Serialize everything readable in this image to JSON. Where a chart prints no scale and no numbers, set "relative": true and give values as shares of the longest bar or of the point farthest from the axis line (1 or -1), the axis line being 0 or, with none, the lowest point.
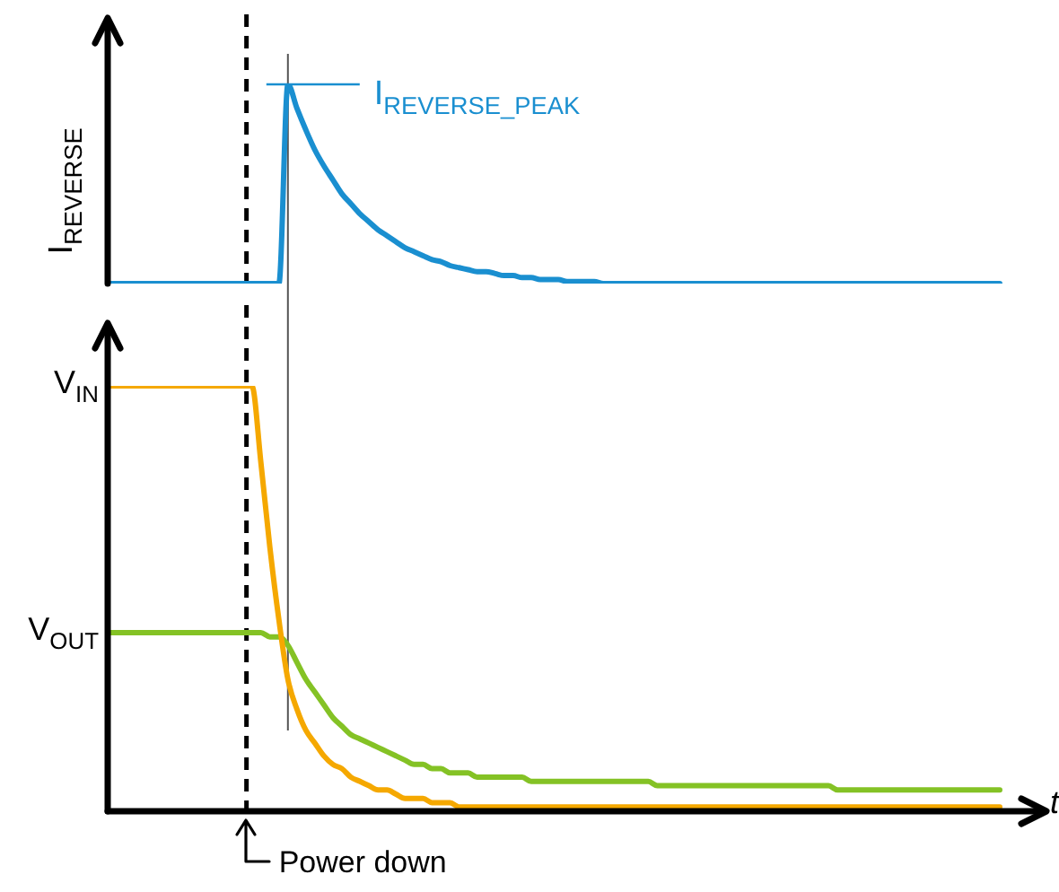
{
  "chart_data": [
    {
      "type": "line",
      "relative": true,
      "ylabel": "I$_{REVERSE}$",
      "categories": [
        null,
        null,
        null,
        null,
        null,
        null,
        null,
        null,
        null,
        null,
        null,
        null,
        null,
        null,
        null,
        null,
        null,
        null,
        null,
        null,
        null,
        null,
        null,
        null,
        null,
        null,
        null,
        null,
        null,
        null,
        null,
        null,
        null,
        null,
        null,
        null,
        null,
        null,
        null,
        null,
        null,
        null,
        null,
        null,
        null,
        null,
        null,
        null,
        null,
        null,
        null,
        null,
        null,
        null,
        null,
        null,
        null,
        null,
        null,
        null,
        null,
        null,
        null,
        null,
        null,
        null,
        null,
        null,
        null,
        null,
        null,
        null,
        null,
        null,
        null,
        null,
        null,
        null,
        null,
        null,
        null,
        null,
        null,
        null,
        null,
        null,
        null,
        null,
        null,
        null,
        null,
        null,
        null,
        null,
        null,
        null,
        null,
        null,
        null,
        null
      ],
      "series": [
        {
          "color": "#1a8fd0",
          "values": [
            0,
            0,
            0,
            0,
            0,
            0,
            0,
            0,
            0,
            0,
            0,
            0,
            0,
            0,
            0,
            0,
            0,
            0,
            0,
            0,
            1,
            0.88,
            0.77,
            0.67,
            0.59,
            0.52,
            0.45,
            0.4,
            0.35,
            0.31,
            0.27,
            0.24,
            0.21,
            0.18,
            0.16,
            0.14,
            0.12,
            0.11,
            0.09,
            0.08,
            0.07,
            0.06,
            0.06,
            0.05,
            0.04,
            0.04,
            0.03,
            0.03,
            0.02,
            0.02,
            0.02,
            0.01,
            0.01,
            0.01,
            0.01,
            0,
            0,
            0,
            0,
            0,
            0,
            0,
            0,
            0,
            0,
            0,
            0,
            0,
            0,
            0,
            0,
            0,
            0,
            0,
            0,
            0,
            0,
            0,
            0,
            0,
            0,
            0,
            0,
            0,
            0,
            0,
            0,
            0,
            0,
            0,
            0,
            0,
            0,
            0,
            0,
            0,
            0,
            0,
            0,
            0
          ]
        }
      ],
      "annotations": [
        "I$_{REVERSE_PEAK}$"
      ]
    },
    {
      "type": "line",
      "relative": true,
      "xlabel": "t",
      "categories": [
        null,
        null,
        null,
        null,
        null,
        null,
        null,
        null,
        null,
        null,
        null,
        null,
        null,
        null,
        null,
        null,
        null,
        null,
        null,
        null,
        null,
        null,
        null,
        null,
        null,
        null,
        null,
        null,
        null,
        null,
        null,
        null,
        null,
        null,
        null,
        null,
        null,
        null,
        null,
        null,
        null,
        null,
        null,
        null,
        null,
        null,
        null,
        null,
        null,
        null,
        null,
        null,
        null,
        null,
        null,
        null,
        null,
        null,
        null,
        null,
        null,
        null,
        null,
        null,
        null,
        null,
        null,
        null,
        null,
        null,
        null,
        null,
        null,
        null,
        null,
        null,
        null,
        null,
        null,
        null,
        null,
        null,
        null,
        null,
        null,
        null,
        null,
        null,
        null,
        null,
        null,
        null,
        null,
        null,
        null,
        null,
        null,
        null,
        null,
        null
      ],
      "series": [
        {
          "name": "V$_{IN}$",
          "color": "#f5a800",
          "values": [
            1,
            1,
            1,
            1,
            1,
            1,
            1,
            1,
            1,
            1,
            1,
            1,
            1,
            1,
            1,
            1,
            1,
            0.82,
            0.62,
            0.45,
            0.31,
            0.24,
            0.19,
            0.16,
            0.13,
            0.11,
            0.1,
            0.08,
            0.07,
            0.06,
            0.05,
            0.05,
            0.04,
            0.03,
            0.03,
            0.03,
            0.02,
            0.02,
            0.02,
            0.01,
            0.01,
            0.01,
            0.01,
            0.01,
            0.01,
            0.01,
            0.01,
            0.01,
            0.01,
            0.01,
            0.01,
            0.01,
            0.01,
            0.01,
            0.01,
            0.01,
            0.01,
            0.01,
            0.01,
            0.01,
            0.01,
            0.01,
            0.01,
            0.01,
            0.01,
            0.01,
            0.01,
            0.01,
            0.01,
            0.01,
            0.01,
            0.01,
            0.01,
            0.01,
            0.01,
            0.01,
            0.01,
            0.01,
            0.01,
            0.01,
            0.01,
            0.01,
            0.01,
            0.01,
            0.01,
            0.01,
            0.01,
            0.01,
            0.01,
            0.01,
            0.01,
            0.01,
            0.01,
            0.01,
            0.01,
            0.01,
            0.01,
            0.01,
            0.01,
            0.01
          ]
        },
        {
          "name": "V$_{OUT}$",
          "color": "#84c225",
          "values": [
            0.42,
            0.42,
            0.42,
            0.42,
            0.42,
            0.42,
            0.42,
            0.42,
            0.42,
            0.42,
            0.42,
            0.42,
            0.42,
            0.42,
            0.42,
            0.42,
            0.42,
            0.42,
            0.41,
            0.41,
            0.39,
            0.35,
            0.31,
            0.28,
            0.25,
            0.22,
            0.2,
            0.18,
            0.17,
            0.16,
            0.15,
            0.14,
            0.13,
            0.12,
            0.11,
            0.11,
            0.1,
            0.1,
            0.09,
            0.09,
            0.09,
            0.08,
            0.08,
            0.08,
            0.08,
            0.08,
            0.08,
            0.07,
            0.07,
            0.07,
            0.07,
            0.07,
            0.07,
            0.07,
            0.07,
            0.07,
            0.07,
            0.07,
            0.07,
            0.07,
            0.07,
            0.06,
            0.06,
            0.06,
            0.06,
            0.06,
            0.06,
            0.06,
            0.06,
            0.06,
            0.06,
            0.06,
            0.06,
            0.06,
            0.06,
            0.06,
            0.06,
            0.06,
            0.06,
            0.06,
            0.06,
            0.05,
            0.05,
            0.05,
            0.05,
            0.05,
            0.05,
            0.05,
            0.05,
            0.05,
            0.05,
            0.05,
            0.05,
            0.05,
            0.05,
            0.05,
            0.05,
            0.05,
            0.05,
            0.05
          ]
        }
      ],
      "annotations": [
        "Power down"
      ]
    }
  ]
}
